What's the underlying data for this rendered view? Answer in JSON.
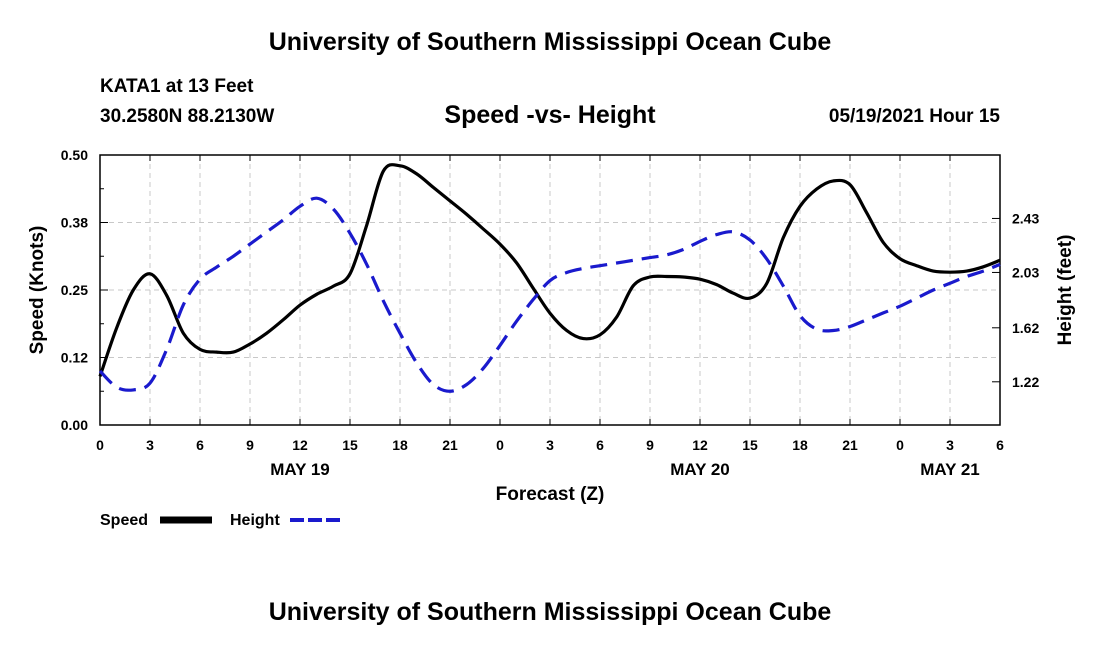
{
  "header": {
    "title": "University of Southern Mississippi Ocean Cube",
    "station": "KATA1 at 13 Feet",
    "coordinates": "30.2580N  88.2130W",
    "chart_title": "Speed -vs- Height",
    "datetime": "05/19/2021 Hour 15"
  },
  "footer": {
    "title": "University of Southern Mississippi Ocean Cube"
  },
  "legend": {
    "speed_label": "Speed",
    "height_label": "Height"
  },
  "colors": {
    "speed": "#000000",
    "height": "#1a1acd",
    "grid": "#c8c8c8"
  },
  "chart_data": {
    "type": "line",
    "xlabel": "Forecast (Z)",
    "ylabel_left": "Speed (Knots)",
    "ylabel_right": "Height (feet)",
    "x_range_hours": [
      0,
      54
    ],
    "x_tick_hours": [
      0,
      3,
      6,
      9,
      12,
      15,
      18,
      21,
      24,
      27,
      30,
      33,
      36,
      39,
      42,
      45,
      48,
      51,
      54
    ],
    "x_tick_labels": [
      "0",
      "3",
      "6",
      "9",
      "12",
      "15",
      "18",
      "21",
      "0",
      "3",
      "6",
      "9",
      "12",
      "15",
      "18",
      "21",
      "0",
      "3",
      "6"
    ],
    "day_labels": [
      {
        "label": "MAY 19",
        "hour": 12
      },
      {
        "label": "MAY 20",
        "hour": 36
      },
      {
        "label": "MAY 21",
        "hour": 51
      }
    ],
    "y_left": {
      "range": [
        0,
        0.5
      ],
      "ticks": [
        0.0,
        0.125,
        0.25,
        0.375,
        0.5
      ],
      "tick_labels": [
        "0.00",
        "0.12",
        "0.25",
        "0.38",
        "0.50"
      ],
      "minor_ticks": [
        0.0625,
        0.1875,
        0.3125,
        0.4375
      ]
    },
    "y_right": {
      "range": [
        0.9,
        2.9
      ],
      "ticks": [
        1.22,
        1.62,
        2.03,
        2.43
      ],
      "tick_labels": [
        "1.22",
        "1.62",
        "2.03",
        "2.43"
      ]
    },
    "series": [
      {
        "name": "Speed",
        "axis": "left",
        "style": "solid",
        "x": [
          0,
          1,
          2,
          3,
          4,
          5,
          6,
          7,
          8,
          9,
          10,
          11,
          12,
          13,
          14,
          15,
          16,
          17,
          18,
          19,
          20,
          21,
          22,
          23,
          24,
          25,
          26,
          27,
          28,
          29,
          30,
          31,
          32,
          33,
          34,
          35,
          36,
          37,
          38,
          39,
          40,
          41,
          42,
          43,
          44,
          45,
          46,
          47,
          48,
          49,
          50,
          51,
          52,
          53,
          54
        ],
        "values": [
          0.09,
          0.18,
          0.25,
          0.28,
          0.24,
          0.17,
          0.14,
          0.135,
          0.135,
          0.15,
          0.17,
          0.195,
          0.222,
          0.242,
          0.257,
          0.28,
          0.37,
          0.47,
          0.48,
          0.465,
          0.44,
          0.415,
          0.39,
          0.363,
          0.335,
          0.3,
          0.253,
          0.207,
          0.175,
          0.16,
          0.167,
          0.2,
          0.258,
          0.274,
          0.275,
          0.274,
          0.27,
          0.26,
          0.244,
          0.235,
          0.262,
          0.347,
          0.405,
          0.437,
          0.452,
          0.445,
          0.393,
          0.338,
          0.308,
          0.295,
          0.285,
          0.283,
          0.285,
          0.293,
          0.305
        ]
      },
      {
        "name": "Height",
        "axis": "right",
        "style": "dashed",
        "x": [
          0,
          1,
          2,
          3,
          4,
          5,
          6,
          7,
          8,
          9,
          10,
          11,
          12,
          13,
          14,
          15,
          16,
          17,
          18,
          19,
          20,
          21,
          22,
          23,
          24,
          25,
          26,
          27,
          28,
          29,
          30,
          31,
          32,
          33,
          34,
          35,
          36,
          37,
          38,
          39,
          40,
          41,
          42,
          43,
          44,
          45,
          46,
          47,
          48,
          49,
          50,
          51,
          52,
          53,
          54
        ],
        "values": [
          1.3,
          1.18,
          1.16,
          1.21,
          1.46,
          1.79,
          1.98,
          2.07,
          2.15,
          2.24,
          2.33,
          2.42,
          2.52,
          2.58,
          2.5,
          2.32,
          2.09,
          1.82,
          1.58,
          1.36,
          1.2,
          1.15,
          1.2,
          1.32,
          1.49,
          1.67,
          1.83,
          1.97,
          2.03,
          2.06,
          2.08,
          2.1,
          2.12,
          2.14,
          2.16,
          2.2,
          2.26,
          2.31,
          2.33,
          2.27,
          2.13,
          1.93,
          1.71,
          1.61,
          1.6,
          1.63,
          1.68,
          1.73,
          1.78,
          1.84,
          1.9,
          1.95,
          2.0,
          2.04,
          2.09
        ]
      }
    ]
  }
}
